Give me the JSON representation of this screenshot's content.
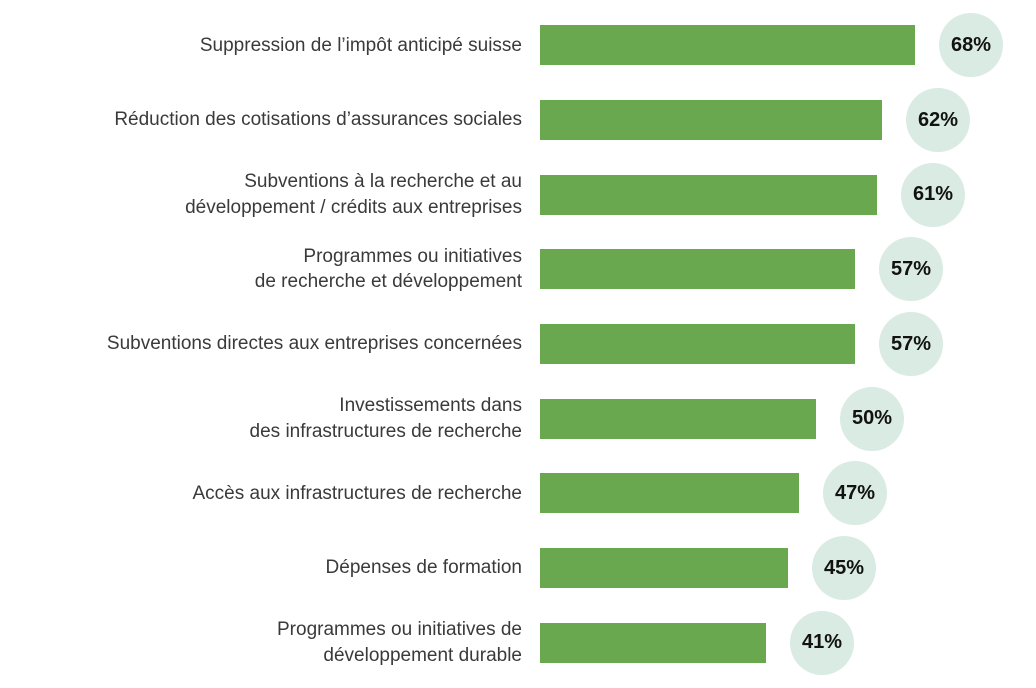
{
  "chart_data": {
    "type": "bar",
    "orientation": "horizontal",
    "title": "",
    "xlabel": "",
    "ylabel": "",
    "xlim": [
      0,
      100
    ],
    "grid": false,
    "legend": "none",
    "value_suffix": "%",
    "bar_color": "#6aa84f",
    "badge_color": "#d9ebe2",
    "categories": [
      "Suppression de l’impôt anticipé suisse",
      "Réduction des cotisations d’assurances sociales",
      "Subventions à la recherche et au\ndéveloppement / crédits aux entreprises",
      "Programmes ou initiatives\nde recherche et développement",
      "Subventions directes aux entreprises concernées",
      "Investissements dans\ndes infrastructures de recherche",
      "Accès aux infrastructures de recherche",
      "Dépenses de formation",
      "Programmes ou initiatives de\ndéveloppement durable"
    ],
    "values": [
      68,
      62,
      61,
      57,
      57,
      50,
      47,
      45,
      41
    ]
  }
}
